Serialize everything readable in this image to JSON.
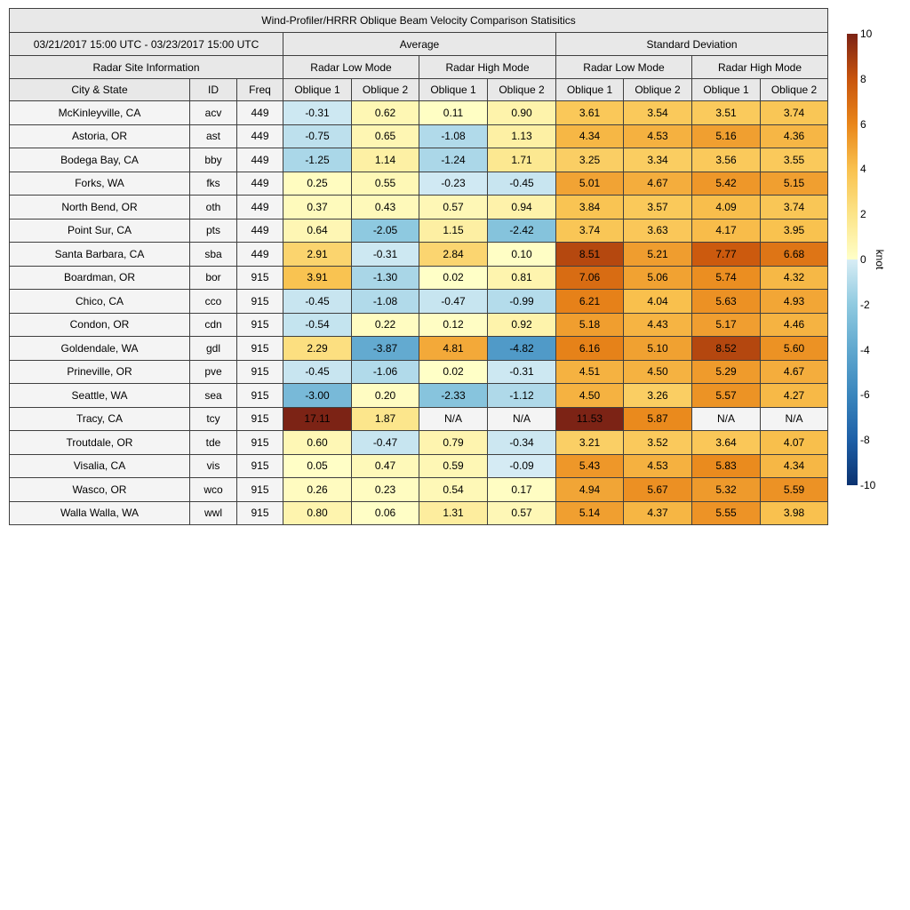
{
  "table_header": {
    "date_range": "03/21/2017 15:00 UTC - 03/23/2017 15:00 UTC",
    "group_average": "Average",
    "group_std": "Standard Deviation",
    "site_info": "Radar Site Information",
    "low_mode": "Radar Low Mode",
    "high_mode": "Radar High Mode",
    "col_city": "City & State",
    "col_id": "ID",
    "col_freq": "Freq",
    "oblique1": "Oblique 1",
    "oblique2": "Oblique 2"
  },
  "color_scale": {
    "domain": [
      -10,
      10
    ],
    "positive_anchors": [
      [
        0,
        "#ffffc8"
      ],
      [
        2,
        "#fce488"
      ],
      [
        4,
        "#f9c14e"
      ],
      [
        6,
        "#e9861a"
      ],
      [
        8,
        "#c8540d"
      ],
      [
        10,
        "#7c2315"
      ]
    ],
    "negative_anchors": [
      [
        0,
        "#d8edf5"
      ],
      [
        -2,
        "#8fcae0"
      ],
      [
        -4,
        "#60a8cf"
      ],
      [
        -6,
        "#3a86bd"
      ],
      [
        -8,
        "#1d5fa7"
      ],
      [
        -10,
        "#0b3270"
      ]
    ],
    "na_background": "#f4f4f4"
  },
  "colorbar": {
    "min": -10,
    "max": 10,
    "unit": "knot",
    "ticks": [
      10,
      8,
      6,
      4,
      2,
      0,
      -2,
      -4,
      -6,
      -8,
      -10
    ],
    "gradient_stops": [
      [
        10,
        "#7c2315"
      ],
      [
        8,
        "#c8540d"
      ],
      [
        6,
        "#e9861a"
      ],
      [
        4,
        "#f9c14e"
      ],
      [
        2,
        "#fce488"
      ],
      [
        0,
        "#ffffc8"
      ],
      [
        0,
        "#d8edf5"
      ],
      [
        -2,
        "#8fcae0"
      ],
      [
        -4,
        "#60a8cf"
      ],
      [
        -6,
        "#3a86bd"
      ],
      [
        -8,
        "#1d5fa7"
      ],
      [
        -10,
        "#0b3270"
      ]
    ]
  },
  "chart_data": {
    "type": "heatmap",
    "title": "Wind-Profiler/HRRR Oblique Beam Velocity Comparison Statisitics",
    "period": "03/21/2017 15:00 UTC - 03/23/2017 15:00 UTC",
    "unit": "knot",
    "colorbar_range": [
      -10,
      10
    ],
    "colorbar_ticks": [
      10,
      8,
      6,
      4,
      2,
      0,
      -2,
      -4,
      -6,
      -8,
      -10
    ],
    "value_columns": [
      "Average Radar Low Mode Oblique 1",
      "Average Radar Low Mode Oblique 2",
      "Average Radar High Mode Oblique 1",
      "Average Radar High Mode Oblique 2",
      "Standard Deviation Radar Low Mode Oblique 1",
      "Standard Deviation Radar Low Mode Oblique 2",
      "Standard Deviation Radar High Mode Oblique 1",
      "Standard Deviation Radar High Mode Oblique 2"
    ],
    "rows": [
      {
        "city": "McKinleyville, CA",
        "id": "acv",
        "freq": "449",
        "values": [
          -0.31,
          0.62,
          0.11,
          0.9,
          3.61,
          3.54,
          3.51,
          3.74
        ]
      },
      {
        "city": "Astoria, OR",
        "id": "ast",
        "freq": "449",
        "values": [
          -0.75,
          0.65,
          -1.08,
          1.13,
          4.34,
          4.53,
          5.16,
          4.36
        ]
      },
      {
        "city": "Bodega Bay, CA",
        "id": "bby",
        "freq": "449",
        "values": [
          -1.25,
          1.14,
          -1.24,
          1.71,
          3.25,
          3.34,
          3.56,
          3.55
        ]
      },
      {
        "city": "Forks, WA",
        "id": "fks",
        "freq": "449",
        "values": [
          0.25,
          0.55,
          -0.23,
          -0.45,
          5.01,
          4.67,
          5.42,
          5.15
        ]
      },
      {
        "city": "North Bend, OR",
        "id": "oth",
        "freq": "449",
        "values": [
          0.37,
          0.43,
          0.57,
          0.94,
          3.84,
          3.57,
          4.09,
          3.74
        ]
      },
      {
        "city": "Point Sur, CA",
        "id": "pts",
        "freq": "449",
        "values": [
          0.64,
          -2.05,
          1.15,
          -2.42,
          3.74,
          3.63,
          4.17,
          3.95
        ]
      },
      {
        "city": "Santa Barbara, CA",
        "id": "sba",
        "freq": "449",
        "values": [
          2.91,
          -0.31,
          2.84,
          0.1,
          8.51,
          5.21,
          7.77,
          6.68
        ]
      },
      {
        "city": "Boardman, OR",
        "id": "bor",
        "freq": "915",
        "values": [
          3.91,
          -1.3,
          0.02,
          0.81,
          7.06,
          5.06,
          5.74,
          4.32
        ]
      },
      {
        "city": "Chico, CA",
        "id": "cco",
        "freq": "915",
        "values": [
          -0.45,
          -1.08,
          -0.47,
          -0.99,
          6.21,
          4.04,
          5.63,
          4.93
        ]
      },
      {
        "city": "Condon, OR",
        "id": "cdn",
        "freq": "915",
        "values": [
          -0.54,
          0.22,
          0.12,
          0.92,
          5.18,
          4.43,
          5.17,
          4.46
        ]
      },
      {
        "city": "Goldendale, WA",
        "id": "gdl",
        "freq": "915",
        "values": [
          2.29,
          -3.87,
          4.81,
          -4.82,
          6.16,
          5.1,
          8.52,
          5.6
        ]
      },
      {
        "city": "Prineville, OR",
        "id": "pve",
        "freq": "915",
        "values": [
          -0.45,
          -1.06,
          0.02,
          -0.31,
          4.51,
          4.5,
          5.29,
          4.67
        ]
      },
      {
        "city": "Seattle, WA",
        "id": "sea",
        "freq": "915",
        "values": [
          -3.0,
          0.2,
          -2.33,
          -1.12,
          4.5,
          3.26,
          5.57,
          4.27
        ]
      },
      {
        "city": "Tracy, CA",
        "id": "tcy",
        "freq": "915",
        "values": [
          17.11,
          1.87,
          "N/A",
          "N/A",
          11.53,
          5.87,
          "N/A",
          "N/A"
        ]
      },
      {
        "city": "Troutdale, OR",
        "id": "tde",
        "freq": "915",
        "values": [
          0.6,
          -0.47,
          0.79,
          -0.34,
          3.21,
          3.52,
          3.64,
          4.07
        ]
      },
      {
        "city": "Visalia, CA",
        "id": "vis",
        "freq": "915",
        "values": [
          0.05,
          0.47,
          0.59,
          -0.09,
          5.43,
          4.53,
          5.83,
          4.34
        ]
      },
      {
        "city": "Wasco, OR",
        "id": "wco",
        "freq": "915",
        "values": [
          0.26,
          0.23,
          0.54,
          0.17,
          4.94,
          5.67,
          5.32,
          5.59
        ]
      },
      {
        "city": "Walla Walla, WA",
        "id": "wwl",
        "freq": "915",
        "values": [
          0.8,
          0.06,
          1.31,
          0.57,
          5.14,
          4.37,
          5.55,
          3.98
        ]
      }
    ]
  }
}
